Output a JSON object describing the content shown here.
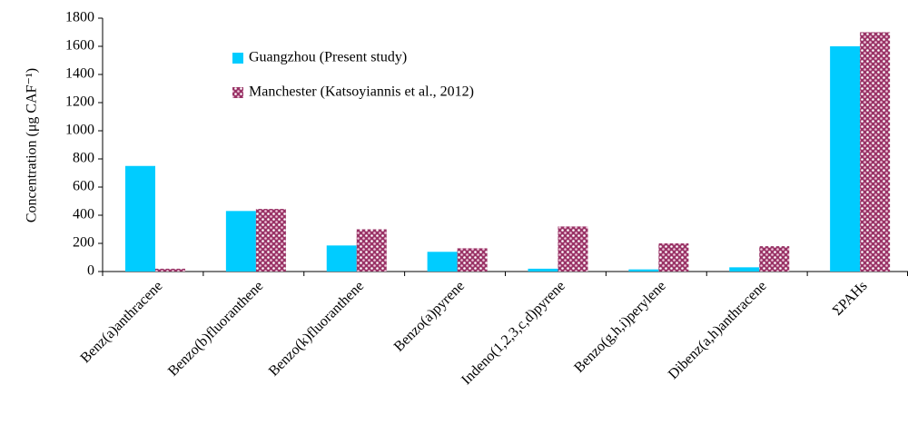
{
  "chart_data": {
    "type": "bar",
    "y_label": "Concentration (μg CAF⁻¹)",
    "categories": [
      "Benz(a)anthracene",
      "Benzo(b)fluoranthene",
      "Benzo(k)fluoranthene",
      "Benzo(a)pyrene",
      "Indeno(1,2,3,c,d)pyrene",
      "Benzo(g,h,i)perylene",
      "Dibenz(a,h)anthracene",
      "ΣPAHs"
    ],
    "series": [
      {
        "name": "Guangzhou (Present study)",
        "color": "#00ccff",
        "values": [
          750,
          430,
          185,
          140,
          20,
          15,
          30,
          1600
        ]
      },
      {
        "name": "Manchester (Katsoyiannis et al., 2012)",
        "color": "#993366",
        "values": [
          20,
          445,
          300,
          165,
          320,
          200,
          180,
          1700
        ]
      }
    ],
    "ylim": [
      0,
      1800
    ],
    "yticks": [
      0,
      200,
      400,
      600,
      800,
      1000,
      1200,
      1400,
      1600,
      1800
    ],
    "grid": false,
    "legend": "upper left"
  }
}
